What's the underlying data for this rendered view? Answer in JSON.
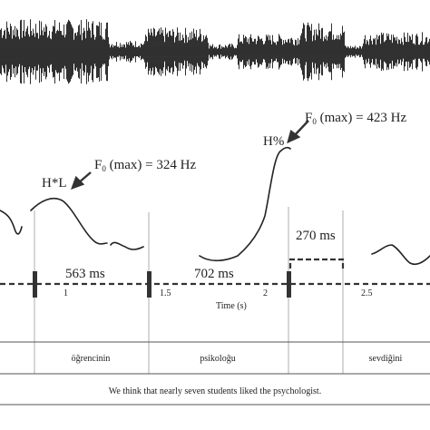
{
  "waveform": {
    "segments": [
      {
        "x0": 0,
        "x1": 120,
        "amp": 1.0
      },
      {
        "x0": 120,
        "x1": 160,
        "amp": 0.35
      },
      {
        "x0": 160,
        "x1": 230,
        "amp": 0.75
      },
      {
        "x0": 230,
        "x1": 262,
        "amp": 0.25
      },
      {
        "x0": 262,
        "x1": 330,
        "amp": 0.55
      },
      {
        "x0": 330,
        "x1": 380,
        "amp": 0.9
      },
      {
        "x0": 380,
        "x1": 400,
        "amp": 0.2
      },
      {
        "x0": 400,
        "x1": 474,
        "amp": 0.6
      }
    ]
  },
  "annotations": {
    "pitch_accent": "H*L",
    "boundary_tone": "H%",
    "f0_max_1_prefix": "F",
    "f0_max_1_sub": "0",
    "f0_max_1_suffix": " (max) = 324 Hz",
    "f0_max_2_prefix": "F",
    "f0_max_2_sub": "0",
    "f0_max_2_suffix": " (max) = 423 Hz"
  },
  "durations": {
    "d1": "563 ms",
    "d2": "702 ms",
    "d3": "270 ms"
  },
  "time_axis": {
    "label": "Time (s)",
    "ticks": [
      "1",
      "1.5",
      "2",
      "2.5"
    ]
  },
  "words": [
    "öğrencinin",
    "psikoloğu",
    "sevdiğini"
  ],
  "translation": "We think that nearly seven students liked the psychologist."
}
